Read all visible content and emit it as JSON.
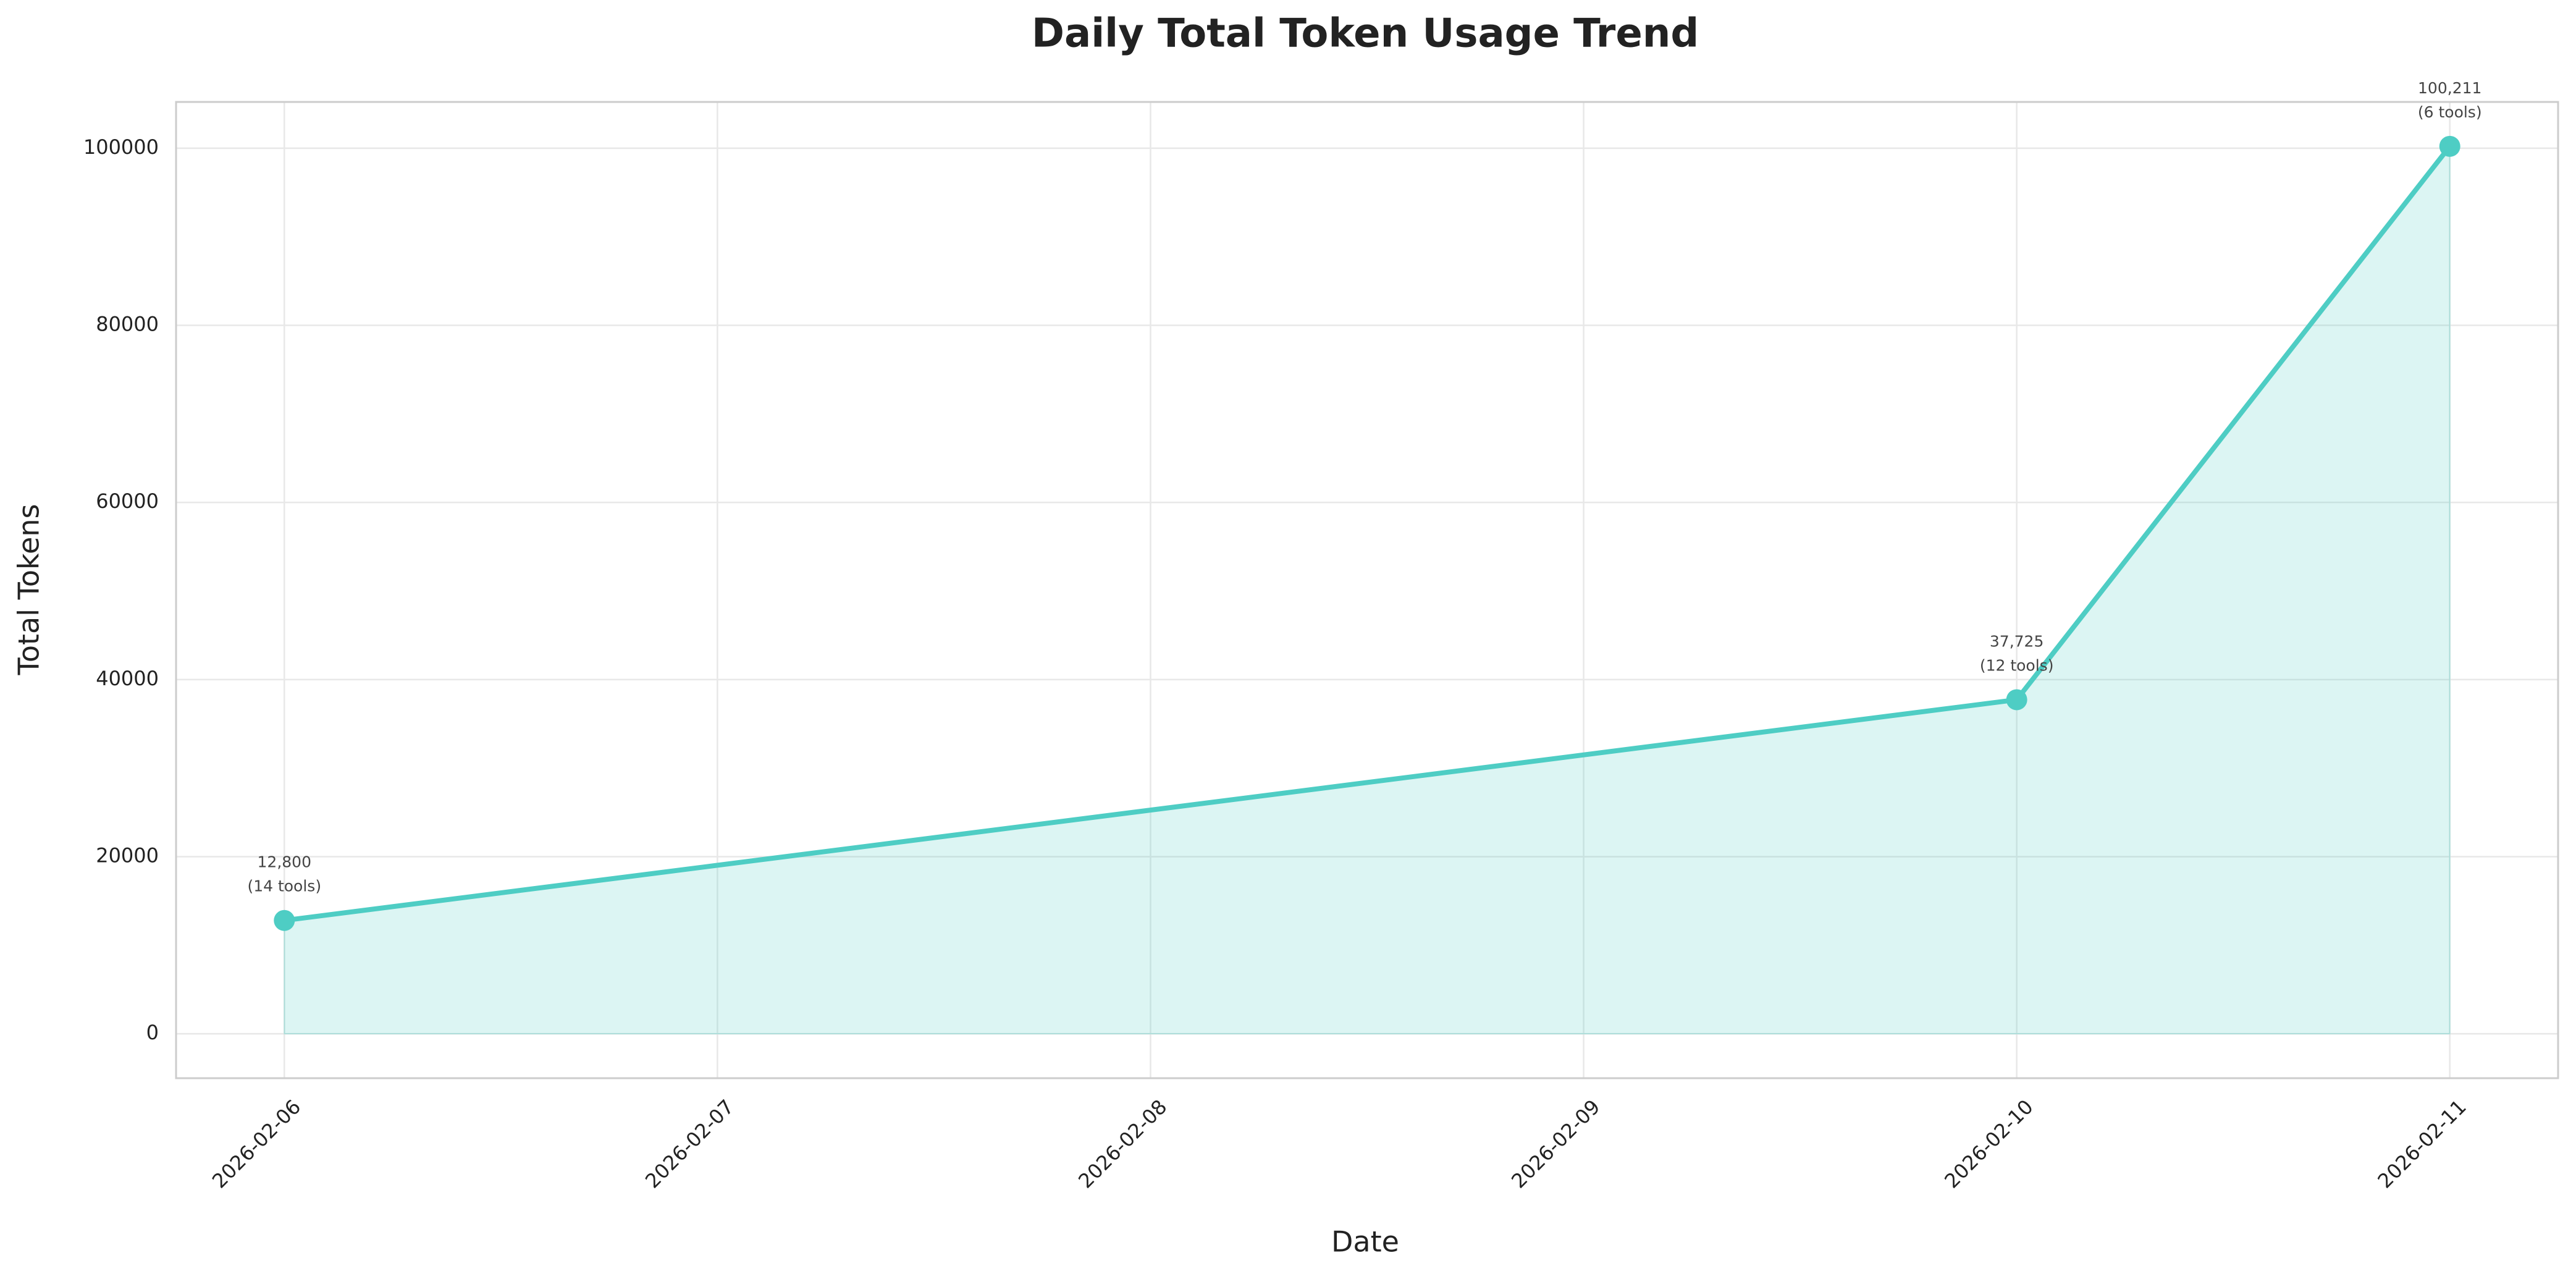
{
  "chart_data": {
    "type": "line",
    "title": "Daily Total Token Usage Trend",
    "x_label": "Date",
    "y_label": "Total Tokens",
    "x": [
      "2026-02-06",
      "2026-02-10",
      "2026-02-11"
    ],
    "values": [
      12800,
      37725,
      100211
    ],
    "value_labels": [
      "12,800",
      "37,725",
      "100,211"
    ],
    "tool_labels": [
      "(14 tools)",
      "(12 tools)",
      "(6 tools)"
    ],
    "color": "#4ecdc4",
    "fill_area": true,
    "xlim": [
      "2026-02-05T18:00",
      "2026-02-11T06:00"
    ],
    "xticks": [
      "2026-02-06",
      "2026-02-07",
      "2026-02-08",
      "2026-02-09",
      "2026-02-10",
      "2026-02-11"
    ],
    "ylim": [
      -5011,
      105222
    ],
    "yticks": [
      0,
      20000,
      40000,
      60000,
      80000,
      100000
    ],
    "grid": true
  }
}
